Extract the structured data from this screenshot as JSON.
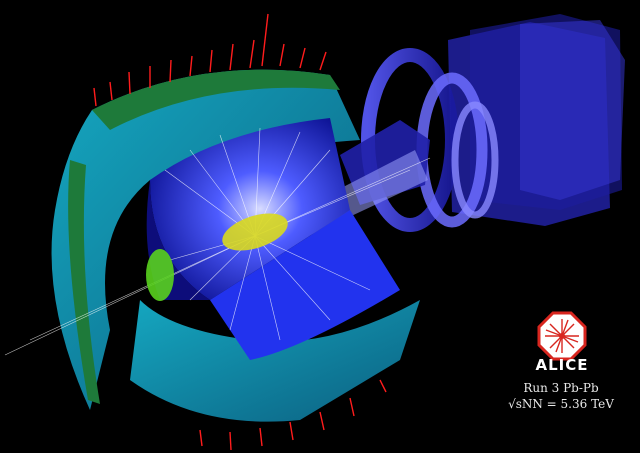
{
  "logo": {
    "text": "ALICE",
    "icon": "alice-logo-icon",
    "accent": "#d8261f"
  },
  "caption": {
    "run": "Run 3 Pb-Pb",
    "energy": "√sNN = 5.36 TeV"
  },
  "colors": {
    "background": "#000000",
    "tracks": "#ffffff",
    "tpc": "#1c2cd8",
    "calorimeter": "#1fb3c8",
    "muon_arm": "#2a2ad0",
    "energy_deposits": "#ff1c1c",
    "its_detector": "#d9d91e",
    "absorber": "#59d11e"
  }
}
